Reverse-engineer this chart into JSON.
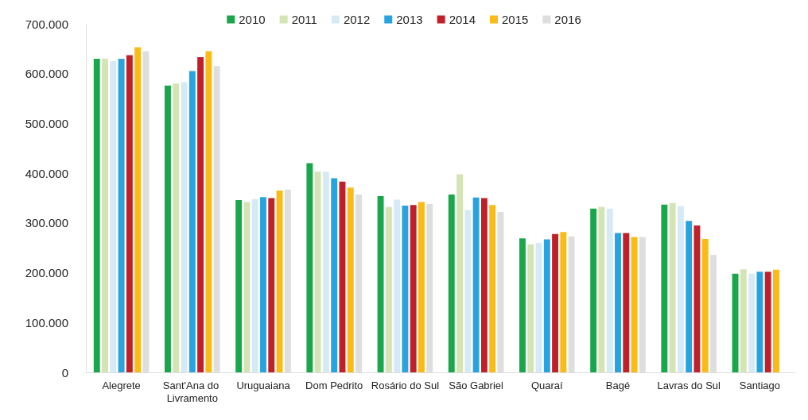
{
  "chart_data": {
    "type": "bar",
    "categories": [
      "Alegrete",
      "Sant'Ana do Livramento",
      "Uruguaiana",
      "Dom Pedrito",
      "Rosário do Sul",
      "São Gabriel",
      "Quaraí",
      "Bagé",
      "Lavras do Sul",
      "Santiago"
    ],
    "series": [
      {
        "name": "2010",
        "color": "#1aa64a",
        "values": [
          630000,
          576000,
          346000,
          420000,
          354000,
          357000,
          269000,
          329000,
          337000,
          198000
        ]
      },
      {
        "name": "2011",
        "color": "#d4e4b4",
        "values": [
          630000,
          580000,
          342000,
          403000,
          332000,
          398000,
          257000,
          332000,
          340000,
          207000
        ]
      },
      {
        "name": "2012",
        "color": "#d6eaf5",
        "values": [
          625000,
          583000,
          348000,
          403000,
          347000,
          326000,
          260000,
          329000,
          334000,
          198000
        ]
      },
      {
        "name": "2013",
        "color": "#27a4df",
        "values": [
          630000,
          605000,
          352000,
          390000,
          335000,
          351000,
          267000,
          280000,
          304000,
          202000
        ]
      },
      {
        "name": "2014",
        "color": "#c0202a",
        "values": [
          637000,
          633000,
          350000,
          383000,
          336000,
          350000,
          278000,
          280000,
          295000,
          202000
        ]
      },
      {
        "name": "2015",
        "color": "#fbbb16",
        "values": [
          653000,
          645000,
          365000,
          371000,
          342000,
          336000,
          282000,
          272000,
          268000,
          206000
        ]
      },
      {
        "name": "2016",
        "color": "#dedede",
        "values": [
          645000,
          615000,
          367000,
          357000,
          338000,
          322000,
          273000,
          272000,
          236000,
          null
        ]
      }
    ],
    "ylim": [
      0,
      700000
    ],
    "yticks": [
      0,
      {
        "value": 100000,
        "label": "100.000"
      },
      {
        "value": 200000,
        "label": "200.000"
      },
      {
        "value": 300000,
        "label": "300.000"
      },
      {
        "value": 400000,
        "label": "400.000"
      },
      {
        "value": 500000,
        "label": "500.000"
      },
      {
        "value": 600000,
        "label": "600.000"
      },
      {
        "value": 700000,
        "label": "700.000"
      }
    ],
    "grid": false,
    "legend": "top"
  }
}
